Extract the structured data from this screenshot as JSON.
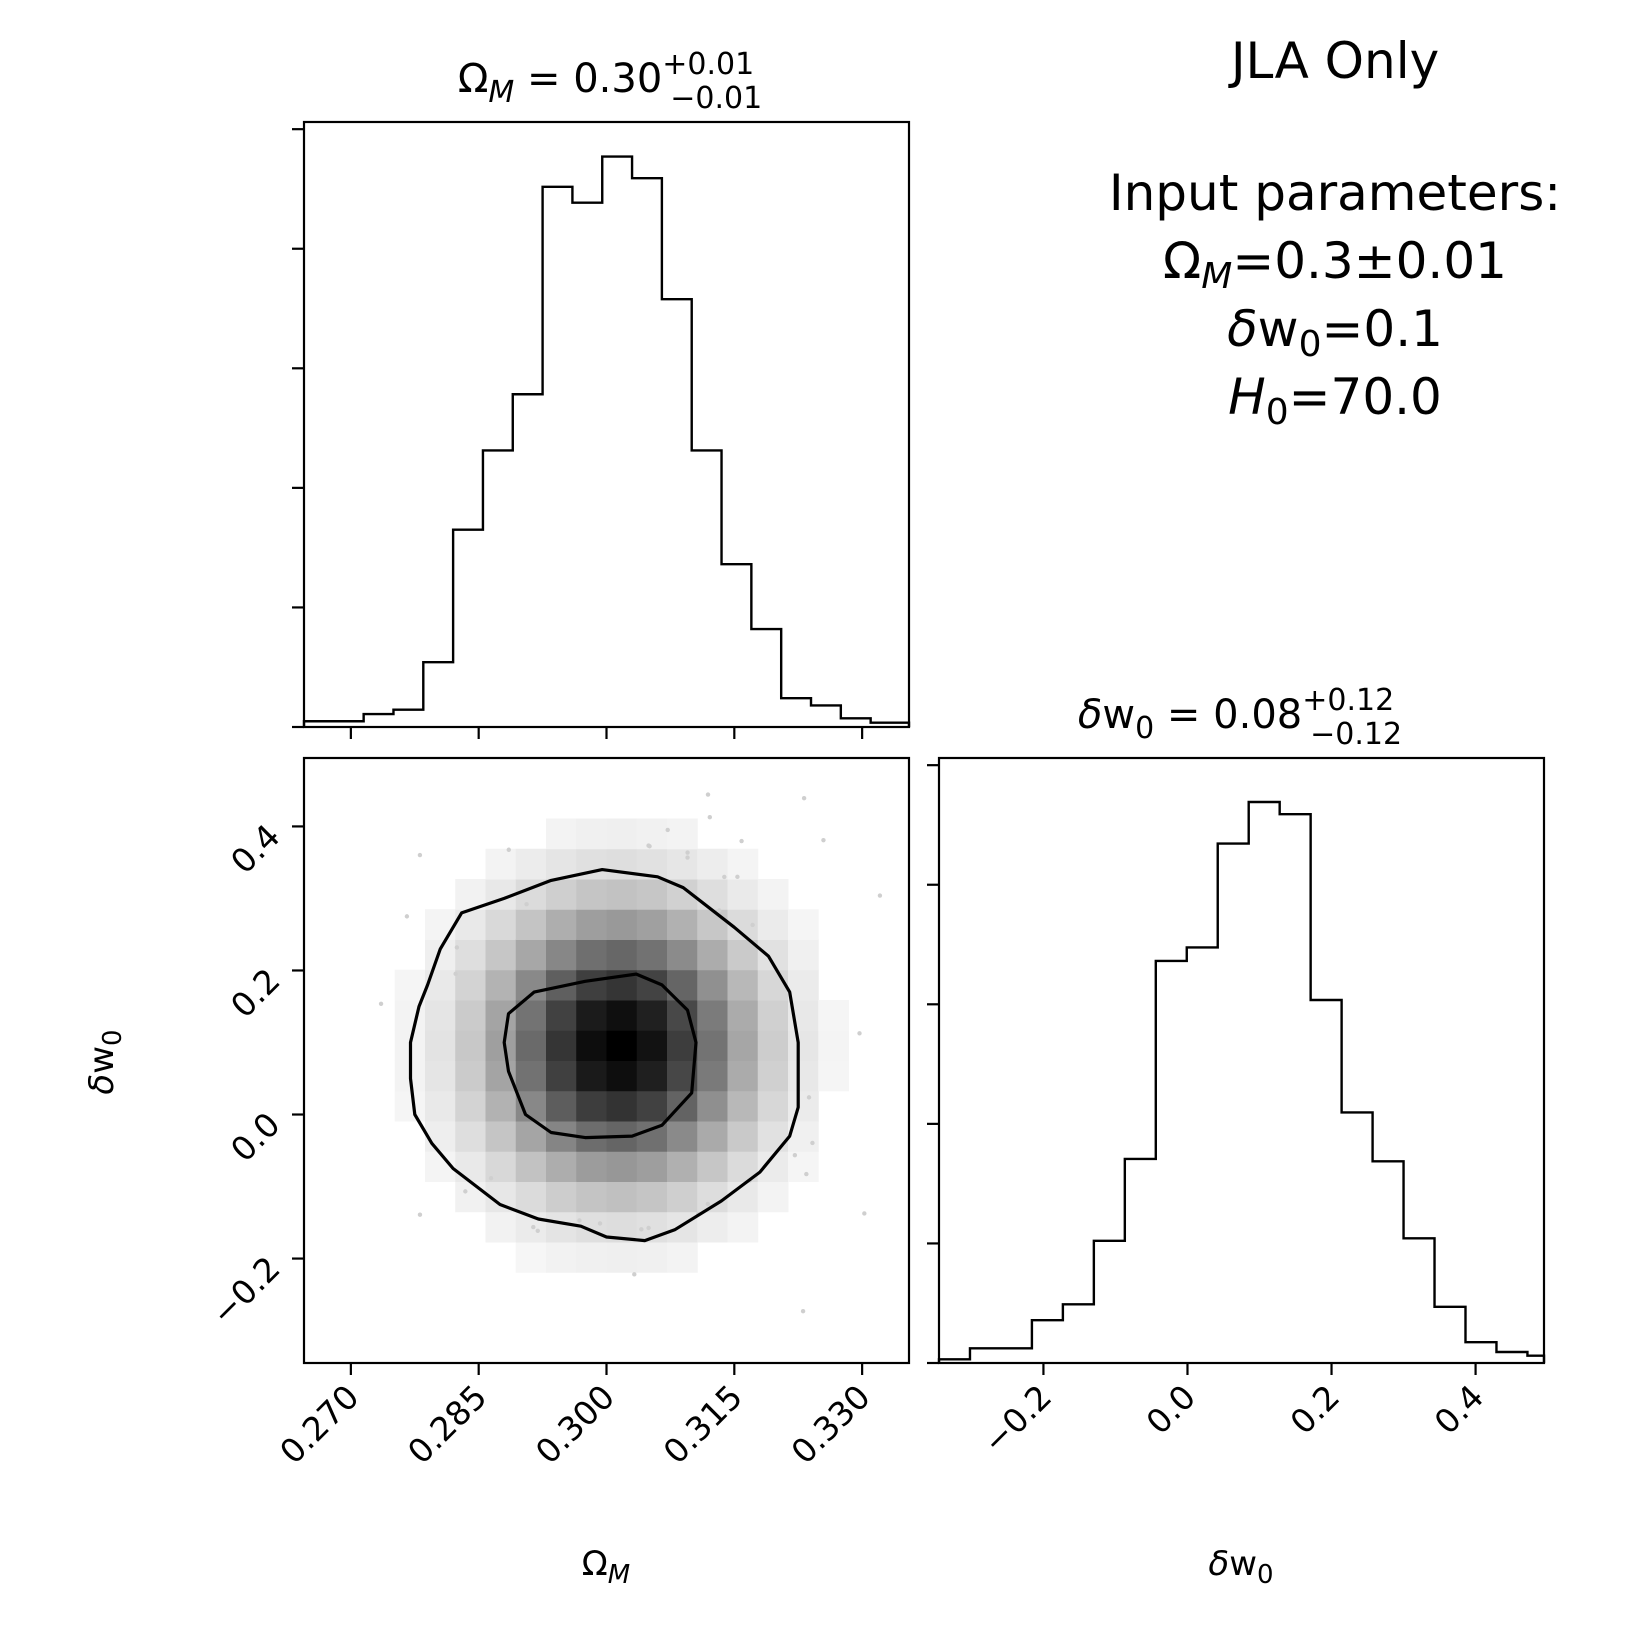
{
  "figure": {
    "info_box": {
      "heading": "JLA Only",
      "params_heading": "Input parameters:",
      "omega_line": "ΩM=0.3±0.01",
      "dw_line": "δw0=0.1",
      "h0_line": "H0=70.0"
    }
  },
  "chart_data": [
    {
      "type": "histogram",
      "panel": "top-left",
      "title": "ΩM = 0.30 +0.01 −0.01",
      "title_parts": {
        "symbol": "Ω",
        "sub": "M",
        "value": " = 0.30",
        "plus": "+0.01",
        "minus": "−0.01"
      },
      "xlim": [
        0.2645,
        0.3355
      ],
      "bin_edges": [
        0.2645,
        0.268,
        0.2715,
        0.275,
        0.2785,
        0.282,
        0.2855,
        0.289,
        0.2925,
        0.296,
        0.2995,
        0.303,
        0.3065,
        0.31,
        0.3135,
        0.317,
        0.3205,
        0.324,
        0.3275,
        0.331,
        0.3355
      ],
      "counts": [
        4,
        4,
        9,
        12,
        45,
        137,
        192,
        231,
        375,
        364,
        396,
        381,
        297,
        192,
        113,
        68,
        20,
        15,
        6,
        3
      ],
      "ymax": 420
    },
    {
      "type": "heatmap",
      "panel": "bottom-left",
      "xlabel": "ΩM",
      "ylabel": "δw0",
      "xlim": [
        0.2645,
        0.3355
      ],
      "ylim": [
        -0.345,
        0.495
      ],
      "xticks": [
        0.27,
        0.285,
        0.3,
        0.315,
        0.33
      ],
      "xtick_labels": [
        "0.270",
        "0.285",
        "0.300",
        "0.315",
        "0.330"
      ],
      "yticks": [
        -0.2,
        0.0,
        0.2,
        0.4
      ],
      "ytick_labels": [
        "−0.2",
        "0.0",
        "0.2",
        "0.4"
      ],
      "density_center": [
        0.3015,
        0.095
      ],
      "density_sigma": [
        0.0092,
        0.115
      ],
      "contours": [
        {
          "level": "inner",
          "points": [
            [
              0.2885,
              0.14
            ],
            [
              0.2915,
              0.17
            ],
            [
              0.2975,
              0.185
            ],
            [
              0.3035,
              0.195
            ],
            [
              0.3065,
              0.18
            ],
            [
              0.3095,
              0.145
            ],
            [
              0.3105,
              0.1
            ],
            [
              0.31,
              0.03
            ],
            [
              0.3065,
              -0.015
            ],
            [
              0.303,
              -0.03
            ],
            [
              0.2975,
              -0.032
            ],
            [
              0.2935,
              -0.025
            ],
            [
              0.2905,
              0.0
            ],
            [
              0.2885,
              0.06
            ],
            [
              0.288,
              0.1
            ],
            [
              0.2885,
              0.14
            ]
          ]
        },
        {
          "level": "outer",
          "points": [
            [
              0.279,
              0.18
            ],
            [
              0.2805,
              0.23
            ],
            [
              0.283,
              0.28
            ],
            [
              0.288,
              0.3
            ],
            [
              0.2935,
              0.325
            ],
            [
              0.2995,
              0.34
            ],
            [
              0.306,
              0.33
            ],
            [
              0.309,
              0.315
            ],
            [
              0.315,
              0.26
            ],
            [
              0.319,
              0.22
            ],
            [
              0.3215,
              0.17
            ],
            [
              0.3225,
              0.1
            ],
            [
              0.3225,
              0.01
            ],
            [
              0.3215,
              -0.03
            ],
            [
              0.318,
              -0.08
            ],
            [
              0.3135,
              -0.12
            ],
            [
              0.308,
              -0.16
            ],
            [
              0.3045,
              -0.175
            ],
            [
              0.3,
              -0.17
            ],
            [
              0.297,
              -0.155
            ],
            [
              0.292,
              -0.145
            ],
            [
              0.2875,
              -0.125
            ],
            [
              0.282,
              -0.075
            ],
            [
              0.2795,
              -0.04
            ],
            [
              0.2775,
              0.0
            ],
            [
              0.277,
              0.05
            ],
            [
              0.277,
              0.1
            ],
            [
              0.278,
              0.15
            ],
            [
              0.279,
              0.18
            ]
          ]
        }
      ]
    },
    {
      "type": "histogram",
      "panel": "bottom-right",
      "title": "δw0 = 0.08 +0.12 −0.12",
      "title_parts": {
        "symbol": "δw",
        "sub": "0",
        "value": " = 0.08",
        "plus": "+0.12",
        "minus": "−0.12"
      },
      "xlabel": "δw0",
      "xlim": [
        -0.345,
        0.495
      ],
      "xticks": [
        -0.2,
        0.0,
        0.2,
        0.4
      ],
      "xtick_labels": [
        "−0.2",
        "0.0",
        "0.2",
        "0.4"
      ],
      "bin_edges": [
        -0.345,
        -0.302,
        -0.259,
        -0.216,
        -0.173,
        -0.13,
        -0.087,
        -0.044,
        -0.001,
        0.042,
        0.085,
        0.128,
        0.171,
        0.214,
        0.257,
        0.3,
        0.343,
        0.386,
        0.429,
        0.472,
        0.495
      ],
      "counts": [
        3,
        12,
        12,
        35,
        48,
        100,
        167,
        329,
        340,
        425,
        459,
        449,
        297,
        205,
        165,
        102,
        46,
        17,
        9,
        6
      ],
      "ymax": 495
    }
  ]
}
